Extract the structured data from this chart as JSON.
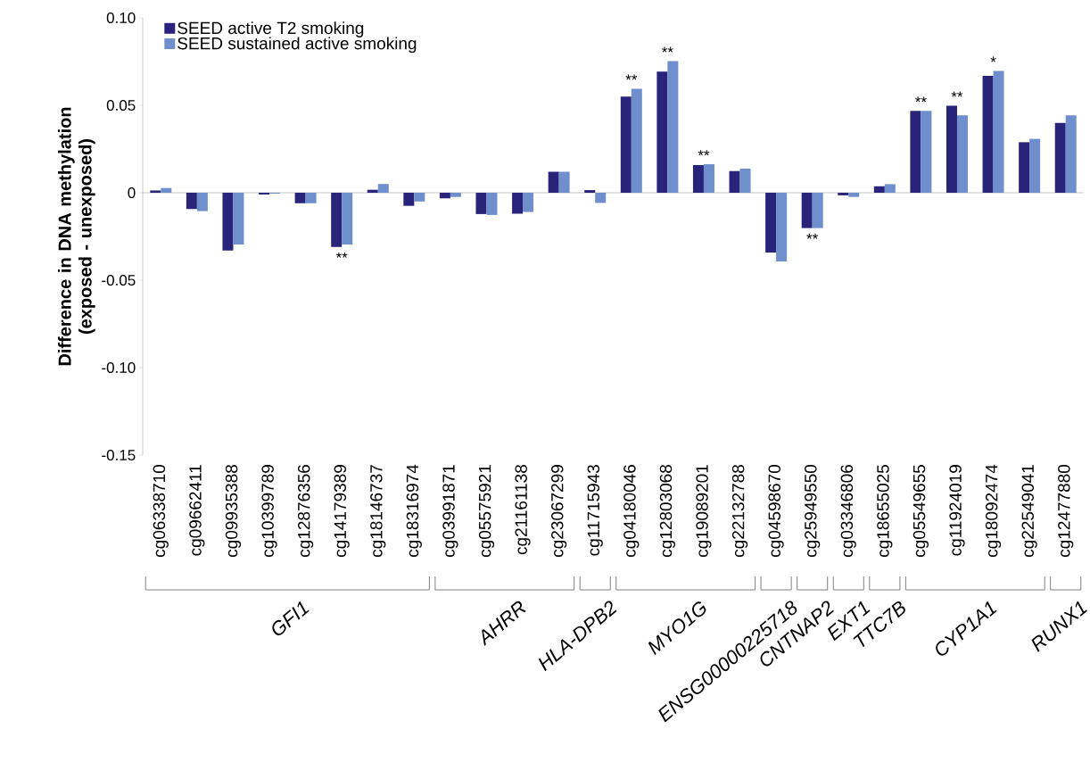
{
  "chart_data": {
    "type": "bar",
    "ylabel": "Difference in DNA methylation (exposed - unexposed)",
    "categories": [
      "cg06338710",
      "cg09662411",
      "cg09935388",
      "cg10399789",
      "cg12876356",
      "cg14179389",
      "cg18146737",
      "cg18316974",
      "cg03991871",
      "cg05575921",
      "cg21161138",
      "cg23067299",
      "cg11715943",
      "cg04180046",
      "cg12803068",
      "cg19089201",
      "cg22132788",
      "cg04598670",
      "cg25949550",
      "cg03346806",
      "cg18655025",
      "cg05549655",
      "cg11924019",
      "cg18092474",
      "cg22549041",
      "cg12477880"
    ],
    "series": [
      {
        "name": "SEED active T2 smoking",
        "color": "#29247a",
        "values": [
          0.0013,
          -0.0093,
          -0.033,
          -0.001,
          -0.006,
          -0.031,
          0.0017,
          -0.0075,
          -0.0032,
          -0.0122,
          -0.012,
          0.012,
          0.0015,
          0.055,
          0.0693,
          0.0158,
          0.0124,
          -0.0342,
          -0.0202,
          -0.0015,
          0.0037,
          0.0468,
          0.0498,
          0.0668,
          0.0289,
          0.0399
        ]
      },
      {
        "name": "SEED sustained active smoking",
        "color": "#6e8fcc",
        "values": [
          0.0027,
          -0.0105,
          -0.0296,
          -0.0005,
          -0.006,
          -0.0296,
          0.005,
          -0.005,
          -0.0024,
          -0.0127,
          -0.011,
          0.012,
          -0.0058,
          0.0595,
          0.0753,
          0.0163,
          0.0138,
          -0.0393,
          -0.0202,
          -0.0024,
          0.0049,
          0.0468,
          0.0442,
          0.0697,
          0.0308,
          0.0442
        ]
      }
    ],
    "ylim": [
      -0.15,
      0.1
    ],
    "yticks": [
      {
        "value": 0.1,
        "label": "0.10"
      },
      0.05,
      0,
      {
        "value": -0.05,
        "label": "-0.05"
      },
      {
        "value": -0.1,
        "label": "-0.10"
      },
      {
        "value": -0.15,
        "label": "-0.15"
      }
    ],
    "legend": "top left",
    "annotations": [
      {
        "text": "**",
        "x": "cg14179389",
        "y": -0.031
      },
      {
        "text": "**",
        "x": "cg04180046",
        "y": 0.0595
      },
      {
        "text": "**",
        "x": "cg12803068",
        "y": 0.0753
      },
      {
        "text": "**",
        "x": "cg19089201",
        "y": 0.0163
      },
      {
        "text": "**",
        "x": "cg25949550",
        "y": -0.0202
      },
      {
        "text": "**",
        "x": "cg05549655",
        "y": 0.0468
      },
      {
        "text": "**",
        "x": "cg11924019",
        "y": 0.0498
      },
      {
        "text": "*",
        "x": "cg18092474",
        "y": 0.0697
      },
      "GFI1",
      "AHRR",
      "HLA-DPB2",
      "MYO1G",
      "ENSG00000225718",
      "CNTNAP2",
      "EXT1",
      "TTC7B",
      "CYP1A1",
      "RUNX1"
    ]
  }
}
